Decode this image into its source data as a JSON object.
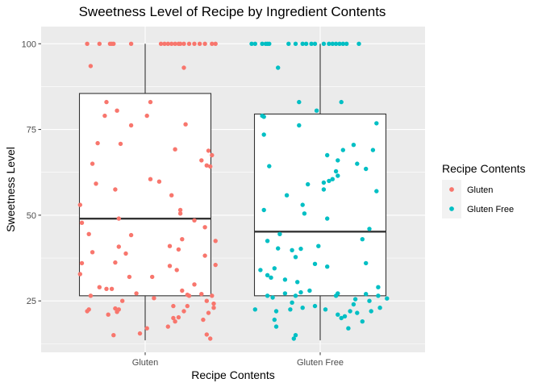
{
  "chart_data": {
    "type": "boxplot+jitter",
    "title": "Sweetness Level of Recipe by Ingredient Contents",
    "xlabel": "Recipe Contents",
    "ylabel": "Sweetness Level",
    "ylim": [
      10,
      105
    ],
    "yticks": [
      25,
      50,
      75,
      100
    ],
    "grid": true,
    "categories": [
      "Gluten",
      "Gluten Free"
    ],
    "legend": {
      "title": "Recipe Contents",
      "position": "right",
      "entries": [
        {
          "label": "Gluten",
          "color": "#F8766D"
        },
        {
          "label": "Gluten Free",
          "color": "#00BFC4"
        }
      ]
    },
    "boxes": [
      {
        "category": "Gluten",
        "min": 13.5,
        "q1": 26.5,
        "median": 49,
        "q3": 85.5,
        "max": 100
      },
      {
        "category": "Gluten Free",
        "min": 13.5,
        "q1": 26.5,
        "median": 45.2,
        "q3": 79.5,
        "max": 100
      }
    ],
    "series": [
      {
        "name": "Gluten",
        "color": "#F8766D",
        "points": [
          [
            -0.33,
            100
          ],
          [
            -0.26,
            100
          ],
          [
            -0.2,
            100
          ],
          [
            -0.19,
            100
          ],
          [
            -0.18,
            100
          ],
          [
            -0.08,
            100
          ],
          [
            0.09,
            100
          ],
          [
            0.11,
            100
          ],
          [
            0.13,
            100
          ],
          [
            0.15,
            100
          ],
          [
            0.17,
            100
          ],
          [
            0.19,
            100
          ],
          [
            0.2,
            100
          ],
          [
            0.22,
            100
          ],
          [
            0.25,
            100
          ],
          [
            0.28,
            100
          ],
          [
            0.31,
            100
          ],
          [
            0.34,
            100
          ],
          [
            0.38,
            100
          ],
          [
            0.4,
            100
          ],
          [
            -0.31,
            93.5
          ],
          [
            0.22,
            93
          ],
          [
            -0.22,
            83
          ],
          [
            0.03,
            83
          ],
          [
            -0.16,
            80.5
          ],
          [
            -0.23,
            79
          ],
          [
            0.01,
            79
          ],
          [
            0.23,
            76.5
          ],
          [
            -0.08,
            76.2
          ],
          [
            -0.27,
            71
          ],
          [
            -0.14,
            70.8
          ],
          [
            0.17,
            69.2
          ],
          [
            0.36,
            68.8
          ],
          [
            0.38,
            67.5
          ],
          [
            0.32,
            66
          ],
          [
            -0.3,
            65
          ],
          [
            0.35,
            64.5
          ],
          [
            0.37,
            64.2
          ],
          [
            0.03,
            60.5
          ],
          [
            0.08,
            59.8
          ],
          [
            -0.28,
            59.2
          ],
          [
            -0.17,
            57.5
          ],
          [
            0.15,
            55.8
          ],
          [
            -0.37,
            53
          ],
          [
            0.2,
            51.5
          ],
          [
            0.2,
            50.5
          ],
          [
            -0.15,
            49
          ],
          [
            0.28,
            48.5
          ],
          [
            -0.36,
            47.8
          ],
          [
            0.34,
            46.5
          ],
          [
            -0.32,
            44.5
          ],
          [
            -0.08,
            44.2
          ],
          [
            0.21,
            43
          ],
          [
            0.4,
            42.5
          ],
          [
            0.14,
            41
          ],
          [
            -0.15,
            40.8
          ],
          [
            0.19,
            40
          ],
          [
            -0.3,
            39.2
          ],
          [
            -0.11,
            38.8
          ],
          [
            0.34,
            38.2
          ],
          [
            -0.17,
            36.2
          ],
          [
            0.14,
            35.2
          ],
          [
            -0.36,
            36
          ],
          [
            0.4,
            35.5
          ],
          [
            0.18,
            34
          ],
          [
            -0.37,
            32.8
          ],
          [
            -0.09,
            32
          ],
          [
            0.04,
            32
          ],
          [
            0.28,
            29.8
          ],
          [
            -0.26,
            29
          ],
          [
            -0.22,
            28.5
          ],
          [
            -0.19,
            28.5
          ],
          [
            -0.05,
            27.2
          ],
          [
            0.21,
            28
          ],
          [
            0.24,
            26.8
          ],
          [
            0.32,
            27
          ],
          [
            -0.31,
            26.5
          ],
          [
            0.25,
            26.5
          ],
          [
            0.38,
            26.5
          ],
          [
            0.05,
            25.8
          ],
          [
            -0.13,
            25
          ],
          [
            0.35,
            25
          ],
          [
            0.39,
            24.2
          ],
          [
            0.16,
            23.5
          ],
          [
            0.24,
            23.5
          ],
          [
            0.39,
            23
          ],
          [
            -0.17,
            22.8
          ],
          [
            -0.15,
            22.5
          ],
          [
            0.22,
            22
          ],
          [
            -0.32,
            22.5
          ],
          [
            -0.33,
            22
          ],
          [
            0.36,
            21.5
          ],
          [
            -0.21,
            21
          ],
          [
            -0.16,
            21.8
          ],
          [
            0.19,
            20.2
          ],
          [
            0.16,
            20
          ],
          [
            0.33,
            19.5
          ],
          [
            0.17,
            19
          ],
          [
            0.13,
            17.5
          ],
          [
            0.01,
            17
          ],
          [
            -0.18,
            15
          ],
          [
            -0.03,
            15.5
          ],
          [
            0.35,
            15.2
          ],
          [
            0.37,
            14
          ]
        ]
      },
      {
        "name": "Gluten Free",
        "color": "#00BFC4",
        "points": [
          [
            -0.39,
            100
          ],
          [
            -0.37,
            100
          ],
          [
            -0.33,
            100
          ],
          [
            -0.31,
            100
          ],
          [
            -0.3,
            100
          ],
          [
            -0.29,
            100
          ],
          [
            -0.18,
            100
          ],
          [
            -0.14,
            100
          ],
          [
            -0.1,
            100
          ],
          [
            -0.08,
            100
          ],
          [
            -0.05,
            100
          ],
          [
            -0.03,
            100
          ],
          [
            0.02,
            100
          ],
          [
            0.05,
            100
          ],
          [
            0.07,
            100
          ],
          [
            0.09,
            100
          ],
          [
            0.11,
            100
          ],
          [
            0.13,
            100
          ],
          [
            0.15,
            100
          ],
          [
            0.22,
            100
          ],
          [
            -0.24,
            93
          ],
          [
            -0.12,
            83
          ],
          [
            0.12,
            83
          ],
          [
            -0.02,
            80.5
          ],
          [
            -0.33,
            79
          ],
          [
            -0.32,
            78.7
          ],
          [
            0.32,
            76.8
          ],
          [
            -0.12,
            76.2
          ],
          [
            -0.32,
            73.5
          ],
          [
            0.19,
            70.5
          ],
          [
            0.13,
            69
          ],
          [
            0.3,
            69
          ],
          [
            0.04,
            67.5
          ],
          [
            0.1,
            66
          ],
          [
            0.21,
            65
          ],
          [
            -0.29,
            64.3
          ],
          [
            0.26,
            63.5
          ],
          [
            0.09,
            62.8
          ],
          [
            0.1,
            61.5
          ],
          [
            0.07,
            60.5
          ],
          [
            0.05,
            60
          ],
          [
            0.02,
            59.5
          ],
          [
            -0.07,
            59
          ],
          [
            0.02,
            57.5
          ],
          [
            0.32,
            57
          ],
          [
            -0.19,
            55.8
          ],
          [
            -0.1,
            53
          ],
          [
            -0.32,
            51.5
          ],
          [
            -0.09,
            50.5
          ],
          [
            0.04,
            49
          ],
          [
            0.28,
            46
          ],
          [
            -0.23,
            44.5
          ],
          [
            -0.3,
            42.5
          ],
          [
            0.24,
            43
          ],
          [
            -0.01,
            41
          ],
          [
            -0.24,
            40.3
          ],
          [
            -0.16,
            39.8
          ],
          [
            -0.11,
            40.2
          ],
          [
            -0.14,
            37.8
          ],
          [
            0.26,
            36
          ],
          [
            -0.03,
            35.8
          ],
          [
            0.04,
            35
          ],
          [
            -0.34,
            34
          ],
          [
            -0.26,
            34.5
          ],
          [
            -0.3,
            32.5
          ],
          [
            -0.28,
            31.8
          ],
          [
            -0.2,
            31.2
          ],
          [
            -0.13,
            30.5
          ],
          [
            0.33,
            29
          ],
          [
            -0.06,
            28
          ],
          [
            -0.11,
            27.5
          ],
          [
            -0.2,
            27.2
          ],
          [
            -0.14,
            26.5
          ],
          [
            -0.3,
            26.5
          ],
          [
            -0.27,
            26
          ],
          [
            0.09,
            26.5
          ],
          [
            0.1,
            27.2
          ],
          [
            0.26,
            27
          ],
          [
            0.33,
            26.5
          ],
          [
            0.38,
            25.7
          ],
          [
            0.2,
            25.5
          ],
          [
            0.28,
            25
          ],
          [
            -0.16,
            24.5
          ],
          [
            0.19,
            24
          ],
          [
            -0.03,
            23.5
          ],
          [
            -0.1,
            23
          ],
          [
            0.34,
            23
          ],
          [
            -0.37,
            22.5
          ],
          [
            -0.17,
            22.5
          ],
          [
            0.03,
            22.5
          ],
          [
            0.17,
            22
          ],
          [
            0.29,
            22
          ],
          [
            -0.25,
            22
          ],
          [
            0.21,
            21.5
          ],
          [
            0.1,
            21
          ],
          [
            0.14,
            20.5
          ],
          [
            0.12,
            20
          ],
          [
            -0.26,
            19.5
          ],
          [
            0.24,
            19
          ],
          [
            -0.25,
            17.5
          ],
          [
            0.16,
            17
          ],
          [
            -0.14,
            15
          ],
          [
            -0.15,
            14
          ]
        ]
      }
    ]
  }
}
